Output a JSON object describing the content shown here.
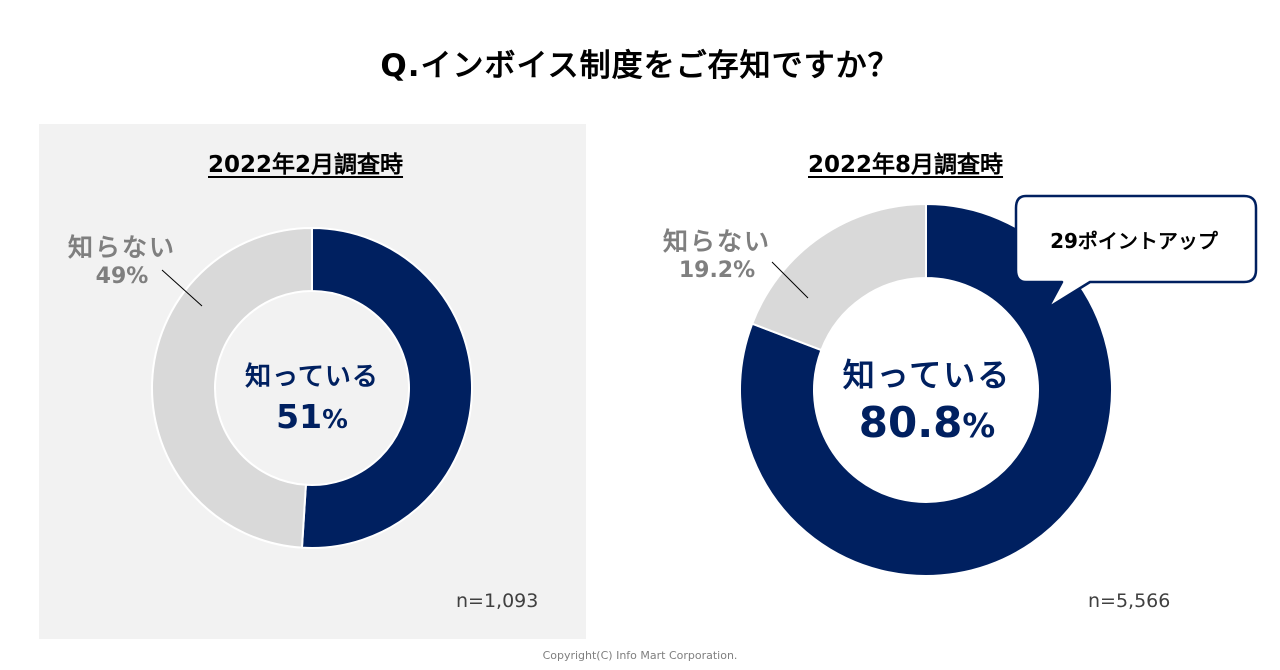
{
  "title": "Q.インボイス制度をご存知ですか？",
  "chart_data": [
    {
      "type": "pie",
      "title": "2022年2月調査時",
      "categories": [
        "知っている",
        "知らない"
      ],
      "values": [
        51,
        49
      ],
      "value_labels": [
        "51%",
        "49%"
      ],
      "n_label": "n=1,093",
      "colors": [
        "#002060",
        "#d9d9d9"
      ]
    },
    {
      "type": "pie",
      "title": "2022年8月調査時",
      "categories": [
        "知っている",
        "知らない"
      ],
      "values": [
        80.8,
        19.2
      ],
      "value_labels": [
        "80.8%",
        "19.2%"
      ],
      "n_label": "n=5,566",
      "colors": [
        "#002060",
        "#d9d9d9"
      ],
      "annotation": "29ポイントアップ"
    }
  ],
  "labels": {
    "known_1": "知っている",
    "known_1_value": "51",
    "unknown_1": "知らない",
    "unknown_1_value": "49%",
    "known_2": "知っている",
    "known_2_value": "80.8",
    "unknown_2": "知らない",
    "unknown_2_value": "19.2%",
    "percent": "%"
  },
  "footer": "Copyright(C) Info Mart Corporation."
}
